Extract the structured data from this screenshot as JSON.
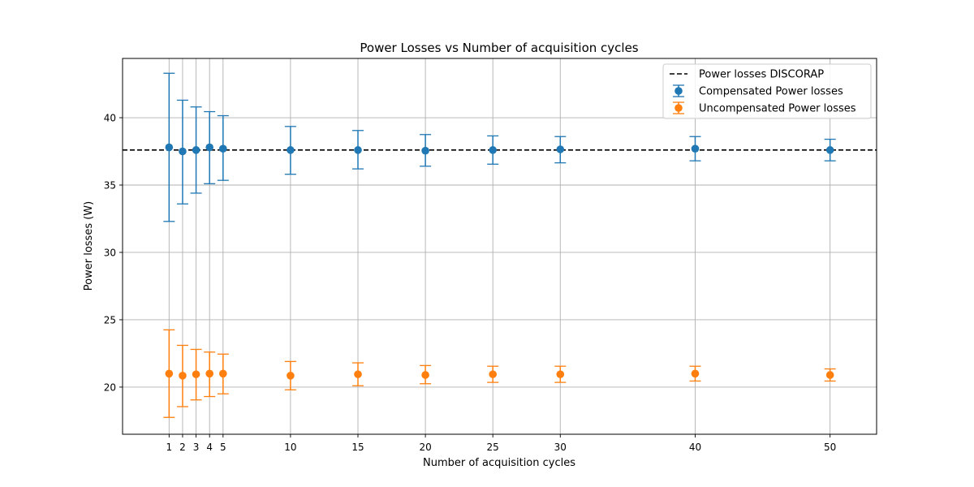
{
  "chart_data": {
    "type": "scatter",
    "title": "Power Losses vs Number of acquisition cycles",
    "xlabel": "Number of acquisition cycles",
    "ylabel": "Power losses (W)",
    "x_ticks": [
      1,
      2,
      3,
      4,
      5,
      10,
      15,
      20,
      25,
      30,
      40,
      50
    ],
    "y_ticks": [
      20,
      25,
      30,
      35,
      40
    ],
    "xlim": [
      -2.45,
      53.45
    ],
    "ylim": [
      16.5,
      44.4
    ],
    "grid": true,
    "legend_position": "top-right",
    "reference_line": {
      "name": "Power losses DISCORAP",
      "value": 37.6,
      "color": "#000000",
      "style": "dashed"
    },
    "series": [
      {
        "name": "Compensated Power losses",
        "color": "#1f77b4",
        "x": [
          1,
          2,
          3,
          4,
          5,
          10,
          15,
          20,
          25,
          30,
          40,
          50
        ],
        "y": [
          37.8,
          37.5,
          37.6,
          37.8,
          37.7,
          37.6,
          37.6,
          37.55,
          37.6,
          37.65,
          37.7,
          37.6
        ],
        "err_low": [
          32.3,
          33.6,
          34.4,
          35.1,
          35.35,
          35.8,
          36.2,
          36.4,
          36.55,
          36.65,
          36.8,
          36.8
        ],
        "err_high": [
          43.3,
          41.3,
          40.8,
          40.45,
          40.15,
          39.35,
          39.05,
          38.75,
          38.65,
          38.6,
          38.6,
          38.4
        ]
      },
      {
        "name": "Uncompensated Power losses",
        "color": "#ff7f0e",
        "x": [
          1,
          2,
          3,
          4,
          5,
          10,
          15,
          20,
          25,
          30,
          40,
          50
        ],
        "y": [
          21.0,
          20.85,
          20.95,
          21.0,
          21.0,
          20.85,
          20.95,
          20.9,
          20.95,
          20.95,
          21.0,
          20.9
        ],
        "err_low": [
          17.75,
          18.55,
          19.05,
          19.3,
          19.5,
          19.8,
          20.1,
          20.25,
          20.35,
          20.35,
          20.45,
          20.45
        ],
        "err_high": [
          24.25,
          23.1,
          22.8,
          22.6,
          22.45,
          21.9,
          21.8,
          21.6,
          21.55,
          21.55,
          21.55,
          21.35
        ]
      }
    ]
  }
}
